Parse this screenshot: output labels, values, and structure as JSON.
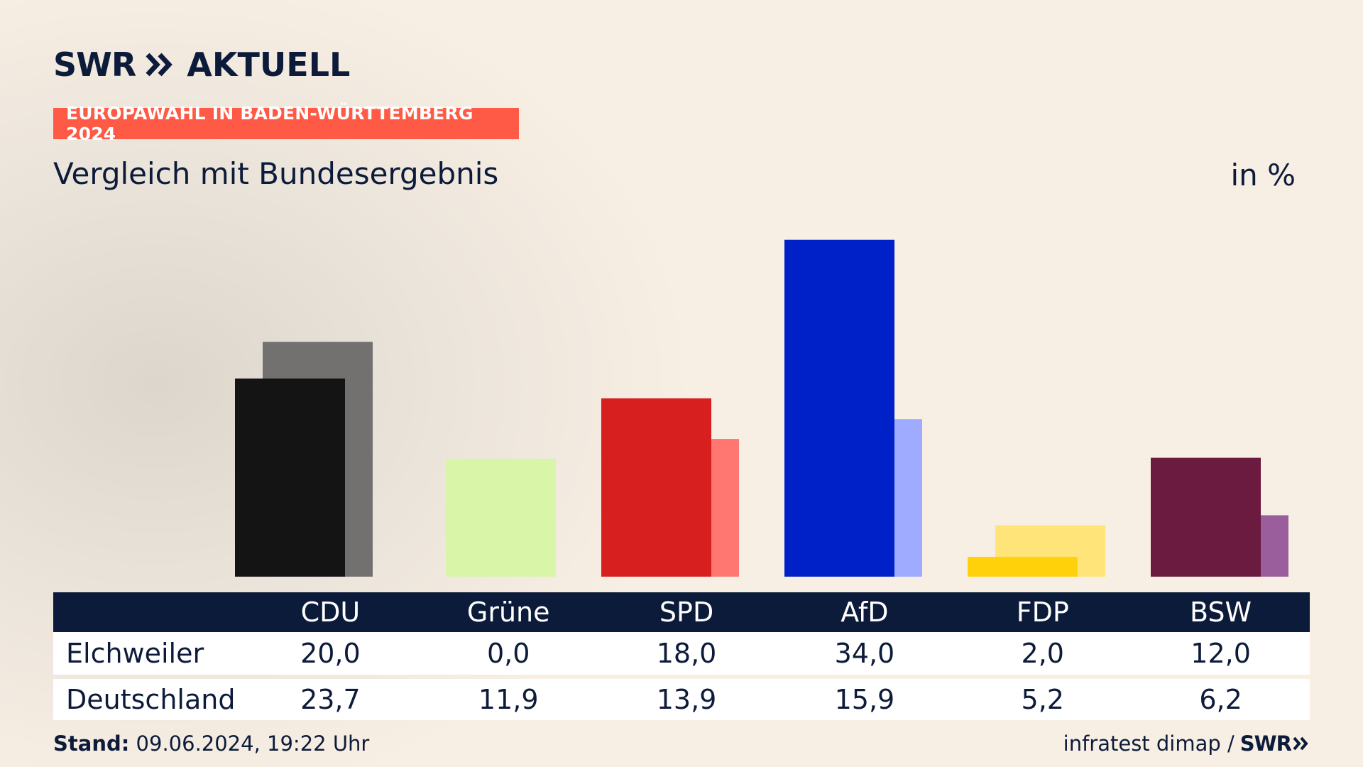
{
  "brand": {
    "logo_text": "SWR",
    "logo_product": "AKTUELL"
  },
  "header": {
    "badge": "EUROPAWAHL IN BADEN-WÜRTTEMBERG 2024",
    "subtitle": "Vergleich mit Bundesergebnis",
    "unit": "in %"
  },
  "table": {
    "columns": [
      "CDU",
      "Grüne",
      "SPD",
      "AfD",
      "FDP",
      "BSW"
    ],
    "rows": [
      {
        "label": "Elchweiler",
        "values": [
          "20,0",
          "0,0",
          "18,0",
          "34,0",
          "2,0",
          "12,0"
        ]
      },
      {
        "label": "Deutschland",
        "values": [
          "23,7",
          "11,9",
          "13,9",
          "15,9",
          "5,2",
          "6,2"
        ]
      }
    ]
  },
  "footer": {
    "stand_label": "Stand:",
    "stand_value": " 09.06.2024, 19:22 Uhr",
    "source": "infratest dimap /",
    "source_brand": "SWR"
  },
  "colors": {
    "navy": "#0d1b3a",
    "badge": "#ff5a45"
  },
  "chart_data": {
    "type": "bar",
    "categories": [
      "CDU",
      "Grüne",
      "SPD",
      "AfD",
      "FDP",
      "BSW"
    ],
    "series": [
      {
        "name": "Elchweiler",
        "values": [
          20.0,
          0.0,
          18.0,
          34.0,
          2.0,
          12.0
        ],
        "colors": [
          "#141414",
          "#d8f5a8",
          "#d71f1f",
          "#0020c8",
          "#ffd10a",
          "#6b1b40"
        ]
      },
      {
        "name": "Deutschland",
        "values": [
          23.7,
          11.9,
          13.9,
          15.9,
          5.2,
          6.2
        ],
        "colors": [
          "#737170",
          "#d8f5a8",
          "#ff7770",
          "#9eabff",
          "#ffe47a",
          "#9b5e9c"
        ]
      }
    ],
    "ylim": [
      0,
      36
    ],
    "grid": false,
    "legend": "none"
  }
}
